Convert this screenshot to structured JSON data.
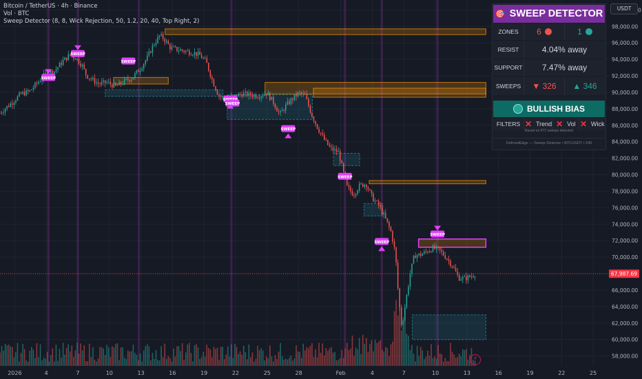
{
  "header": {
    "symbol_line": "Bitcoin / TetherUS · 4h · Binance",
    "volume_line": "Vol · BTC",
    "indicator_line": "Sweep Detector (8, 8, Wick Rejection, 50, 1.2, 20, 40, Top Right, 2)",
    "currency_button": "USDT"
  },
  "panel": {
    "title": "SWEEP DETECTOR",
    "title_icon": "target-icon",
    "zones": {
      "label": "ZONES",
      "bear": "6",
      "bull": "1"
    },
    "resist": {
      "label": "RESIST",
      "value": "4.04% away"
    },
    "support": {
      "label": "SUPPORT",
      "value": "7.47% away"
    },
    "sweeps": {
      "label": "SWEEPS",
      "bear": "▼ 326",
      "bull": "▲ 346"
    },
    "bias": "BULLISH BIAS",
    "filters": {
      "label": "FILTERS",
      "items": [
        "Trend",
        "Vol",
        "Wick"
      ]
    },
    "footnote": "Based on 672 sweeps detected",
    "brand": "DefinedEdge — Sweep Detector  •  BTCUSDT • 240"
  },
  "colors": {
    "bull": "#26a69a",
    "bear": "#ef5350",
    "sweep": "#e040fb",
    "resist_zone": "#ff9800",
    "support_zone": "#26c6da",
    "panel_title": "#7a2e9e",
    "bias_bg": "#0e6b63",
    "price_tag": "#f23645"
  },
  "chart_data": {
    "type": "candlestick",
    "symbol": "BTCUSDT",
    "timeframe": "4h",
    "y_axis": {
      "ticks": [
        58000,
        60000,
        62000,
        64000,
        66000,
        68000,
        70000,
        72000,
        74000,
        76000,
        78000,
        80000,
        82000,
        84000,
        86000,
        88000,
        90000,
        92000,
        94000,
        96000,
        98000,
        100000
      ],
      "tick_labels": [
        "58,000.00",
        "60,000.00",
        "62,000.00",
        "64,000.00",
        "66,000.00",
        "68,000.00",
        "70,000.00",
        "72,000.00",
        "74,000.00",
        "76,000.00",
        "78,000.00",
        "80,000.00",
        "82,000.00",
        "84,000.00",
        "86,000.00",
        "88,000.00",
        "90,000.00",
        "92,000.00",
        "94,000.00",
        "96,000.00",
        "98,000.00",
        "100,000.00"
      ],
      "range": [
        56800,
        101200
      ]
    },
    "x_axis": {
      "labels": [
        "2026",
        "4",
        "7",
        "10",
        "13",
        "16",
        "19",
        "22",
        "25",
        "28",
        "Feb",
        "4",
        "7",
        "10",
        "13",
        "16",
        "19",
        "22",
        "25"
      ],
      "day_of_year": [
        1,
        4,
        7,
        10,
        13,
        16,
        19,
        22,
        25,
        28,
        32,
        35,
        38,
        41,
        44,
        47,
        50,
        53,
        56
      ],
      "range": [
        -0.4,
        57.5
      ]
    },
    "last_price": 67987.69,
    "last_price_label": "67,987.69",
    "close_path": [
      [
        -0.4,
        87500
      ],
      [
        0.6,
        88600
      ],
      [
        1.6,
        89800
      ],
      [
        2.4,
        90100
      ],
      [
        3.2,
        91200
      ],
      [
        4.0,
        92300
      ],
      [
        4.8,
        92600
      ],
      [
        5.6,
        93800
      ],
      [
        6.2,
        94500
      ],
      [
        6.8,
        94200
      ],
      [
        7.4,
        93300
      ],
      [
        7.8,
        92100
      ],
      [
        8.4,
        91500
      ],
      [
        9.0,
        91000
      ],
      [
        9.8,
        91200
      ],
      [
        10.6,
        90700
      ],
      [
        11.4,
        91300
      ],
      [
        12.2,
        91800
      ],
      [
        13.0,
        93000
      ],
      [
        13.6,
        94200
      ],
      [
        14.2,
        95800
      ],
      [
        14.8,
        96900
      ],
      [
        15.2,
        96500
      ],
      [
        15.8,
        95400
      ],
      [
        16.4,
        95200
      ],
      [
        17.2,
        95000
      ],
      [
        18.0,
        94800
      ],
      [
        18.6,
        94500
      ],
      [
        19.2,
        93700
      ],
      [
        19.8,
        91400
      ],
      [
        20.4,
        89600
      ],
      [
        21.0,
        89200
      ],
      [
        21.8,
        89500
      ],
      [
        22.6,
        89800
      ],
      [
        23.4,
        89700
      ],
      [
        24.2,
        89600
      ],
      [
        25.0,
        89900
      ],
      [
        25.6,
        88800
      ],
      [
        26.2,
        87300
      ],
      [
        26.8,
        88400
      ],
      [
        27.4,
        89200
      ],
      [
        28.0,
        89900
      ],
      [
        28.6,
        89600
      ],
      [
        29.2,
        87400
      ],
      [
        29.8,
        85700
      ],
      [
        30.4,
        84300
      ],
      [
        31.0,
        83200
      ],
      [
        31.8,
        82700
      ],
      [
        32.2,
        80500
      ],
      [
        32.6,
        78500
      ],
      [
        33.2,
        77600
      ],
      [
        33.8,
        78700
      ],
      [
        34.4,
        78900
      ],
      [
        35.0,
        77200
      ],
      [
        35.6,
        76300
      ],
      [
        36.2,
        74800
      ],
      [
        36.8,
        73000
      ],
      [
        37.2,
        70400
      ],
      [
        37.5,
        65000
      ],
      [
        37.8,
        61500
      ],
      [
        38.2,
        64800
      ],
      [
        38.6,
        68000
      ],
      [
        39.0,
        70200
      ],
      [
        39.6,
        70300
      ],
      [
        40.2,
        70700
      ],
      [
        40.8,
        71100
      ],
      [
        41.4,
        70800
      ],
      [
        42.0,
        70000
      ],
      [
        42.6,
        69000
      ],
      [
        43.2,
        67500
      ],
      [
        43.8,
        67400
      ],
      [
        44.4,
        67700
      ],
      [
        44.8,
        67987.69
      ]
    ],
    "sweeps": [
      {
        "day": 4.2,
        "price": 91800,
        "dir": "down",
        "label": "SWEEP"
      },
      {
        "day": 7.0,
        "price": 94700,
        "dir": "down",
        "label": "SWEEP"
      },
      {
        "day": 11.8,
        "price": 93800,
        "dir": "none",
        "label": "SWEEP"
      },
      {
        "day": 21.5,
        "price": 89200,
        "dir": "up",
        "label": "SWEEP"
      },
      {
        "day": 21.7,
        "price": 88700,
        "dir": "none",
        "label": "SWEEP"
      },
      {
        "day": 27.0,
        "price": 85600,
        "dir": "up",
        "label": "SWEEP"
      },
      {
        "day": 32.4,
        "price": 79800,
        "dir": "none",
        "label": "SWEEP"
      },
      {
        "day": 35.9,
        "price": 71900,
        "dir": "up",
        "label": "SWEEP"
      },
      {
        "day": 41.2,
        "price": 72800,
        "dir": "down",
        "label": "SWEEP"
      }
    ],
    "sweep_highlight_days": [
      4.2,
      7.0,
      12.8,
      21.6,
      32.4,
      35.9,
      41.2
    ],
    "resistance_zones": [
      {
        "x0": 15.3,
        "x1": 45.8,
        "y0": 97000,
        "y1": 97700
      },
      {
        "x0": 24.8,
        "x1": 45.8,
        "y0": 89800,
        "y1": 91200
      },
      {
        "x0": 29.4,
        "x1": 45.8,
        "y0": 89400,
        "y1": 90500
      },
      {
        "x0": 34.7,
        "x1": 45.8,
        "y0": 78900,
        "y1": 79300
      },
      {
        "x0": 39.4,
        "x1": 45.8,
        "y0": 71200,
        "y1": 72200
      },
      {
        "x0": 10.4,
        "x1": 15.6,
        "y0": 91000,
        "y1": 91800
      }
    ],
    "support_zones": [
      {
        "x0": 9.6,
        "x1": 20.8,
        "y0": 89500,
        "y1": 90300
      },
      {
        "x0": 21.2,
        "x1": 29.3,
        "y0": 86700,
        "y1": 89700
      },
      {
        "x0": 31.3,
        "x1": 33.8,
        "y0": 81100,
        "y1": 82600
      },
      {
        "x0": 34.2,
        "x1": 36.0,
        "y0": 75000,
        "y1": 76500
      },
      {
        "x0": 38.8,
        "x1": 45.8,
        "y0": 60000,
        "y1": 63000
      }
    ]
  }
}
